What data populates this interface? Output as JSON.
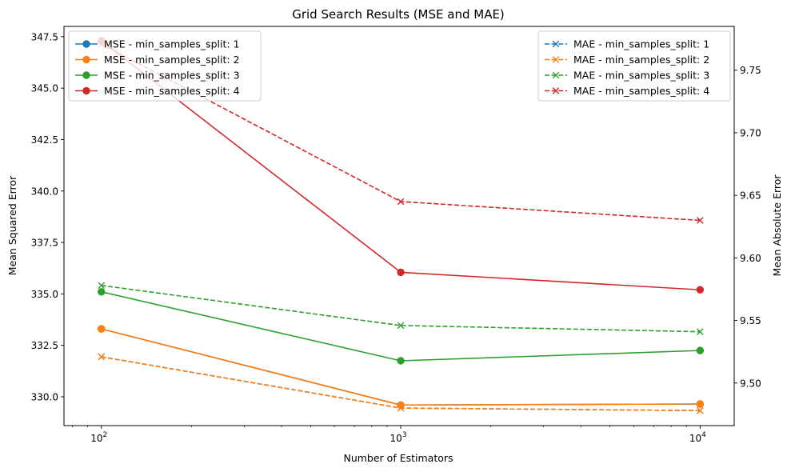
{
  "chart_data": {
    "type": "line",
    "title": "Grid Search Results (MSE and MAE)",
    "xlabel": "Number of Estimators",
    "ylabel_left": "Mean Squared Error",
    "ylabel_right": "Mean Absolute Error",
    "x_scale": "log",
    "x": [
      100,
      1000,
      10000
    ],
    "x_tick_labels": [
      {
        "value": 100,
        "base": "10",
        "exp": "2"
      },
      {
        "value": 1000,
        "base": "10",
        "exp": "3"
      },
      {
        "value": 10000,
        "base": "10",
        "exp": "4"
      }
    ],
    "xlim": [
      75,
      13000
    ],
    "ylim_left": [
      328.6,
      348.0
    ],
    "ylim_right": [
      9.466,
      9.785
    ],
    "y_ticks_left": [
      330.0,
      332.5,
      335.0,
      337.5,
      340.0,
      342.5,
      345.0,
      347.5
    ],
    "y_tick_labels_left": [
      "330.0",
      "332.5",
      "335.0",
      "337.5",
      "340.0",
      "342.5",
      "345.0",
      "347.5"
    ],
    "y_ticks_right": [
      9.5,
      9.55,
      9.6,
      9.65,
      9.7,
      9.75
    ],
    "y_tick_labels_right": [
      "9.50",
      "9.55",
      "9.60",
      "9.65",
      "9.70",
      "9.75"
    ],
    "grid": false,
    "series": [
      {
        "name": "MSE - min_samples_split: 1",
        "axis": "left",
        "style": "solid",
        "marker": "circle",
        "color": "#1f77b4",
        "values": [
          333.3,
          329.6,
          329.65
        ]
      },
      {
        "name": "MSE - min_samples_split: 2",
        "axis": "left",
        "style": "solid",
        "marker": "circle",
        "color": "#ff7f0e",
        "values": [
          333.3,
          329.6,
          329.65
        ]
      },
      {
        "name": "MSE - min_samples_split: 3",
        "axis": "left",
        "style": "solid",
        "marker": "circle",
        "color": "#2ca02c",
        "values": [
          335.1,
          331.75,
          332.25
        ]
      },
      {
        "name": "MSE - min_samples_split: 4",
        "axis": "left",
        "style": "solid",
        "marker": "circle",
        "color": "#d62728",
        "values": [
          347.3,
          336.05,
          335.2
        ]
      },
      {
        "name": "MAE - min_samples_split: 1",
        "axis": "right",
        "style": "dashed",
        "marker": "x",
        "color": "#1f77b4",
        "values": [
          9.521,
          9.48,
          9.478
        ]
      },
      {
        "name": "MAE - min_samples_split: 2",
        "axis": "right",
        "style": "dashed",
        "marker": "x",
        "color": "#ff7f0e",
        "values": [
          9.521,
          9.48,
          9.478
        ]
      },
      {
        "name": "MAE - min_samples_split: 3",
        "axis": "right",
        "style": "dashed",
        "marker": "x",
        "color": "#2ca02c",
        "values": [
          9.578,
          9.546,
          9.541
        ]
      },
      {
        "name": "MAE - min_samples_split: 4",
        "axis": "right",
        "style": "dashed",
        "marker": "x",
        "color": "#d62728",
        "values": [
          9.771,
          9.645,
          9.63
        ]
      }
    ],
    "legend_left": {
      "placement": "upper-left",
      "entries": [
        "MSE - min_samples_split: 1",
        "MSE - min_samples_split: 2",
        "MSE - min_samples_split: 3",
        "MSE - min_samples_split: 4"
      ]
    },
    "legend_right": {
      "placement": "upper-right",
      "entries": [
        "MAE - min_samples_split: 1",
        "MAE - min_samples_split: 2",
        "MAE - min_samples_split: 3",
        "MAE - min_samples_split: 4"
      ]
    }
  }
}
